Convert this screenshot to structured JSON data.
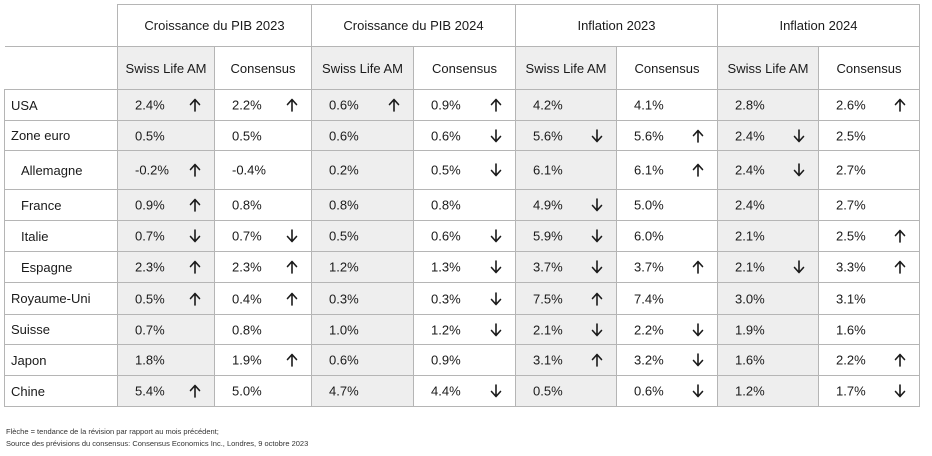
{
  "table": {
    "groups": [
      "Croissance du PIB 2023",
      "Croissance du PIB 2024",
      "Inflation 2023",
      "Inflation 2024"
    ],
    "subheaders": [
      "Swiss Life AM",
      "Consensus"
    ],
    "rows": [
      {
        "label": "USA",
        "sub": false,
        "cells": [
          {
            "v": "2.4%",
            "a": "up"
          },
          {
            "v": "2.2%",
            "a": "up"
          },
          {
            "v": "0.6%",
            "a": "up"
          },
          {
            "v": "0.9%",
            "a": "up"
          },
          {
            "v": "4.2%",
            "a": ""
          },
          {
            "v": "4.1%",
            "a": ""
          },
          {
            "v": "2.8%",
            "a": ""
          },
          {
            "v": "2.6%",
            "a": "up"
          }
        ]
      },
      {
        "label": "Zone euro",
        "sub": false,
        "cells": [
          {
            "v": "0.5%",
            "a": ""
          },
          {
            "v": "0.5%",
            "a": ""
          },
          {
            "v": "0.6%",
            "a": ""
          },
          {
            "v": "0.6%",
            "a": "down"
          },
          {
            "v": "5.6%",
            "a": "down"
          },
          {
            "v": "5.6%",
            "a": "up"
          },
          {
            "v": "2.4%",
            "a": "down"
          },
          {
            "v": "2.5%",
            "a": ""
          }
        ]
      },
      {
        "label": "Allemagne",
        "sub": true,
        "cells": [
          {
            "v": "-0.2%",
            "a": "up"
          },
          {
            "v": "-0.4%",
            "a": ""
          },
          {
            "v": "0.2%",
            "a": ""
          },
          {
            "v": "0.5%",
            "a": "down"
          },
          {
            "v": "6.1%",
            "a": ""
          },
          {
            "v": "6.1%",
            "a": "up"
          },
          {
            "v": "2.4%",
            "a": "down"
          },
          {
            "v": "2.7%",
            "a": ""
          }
        ]
      },
      {
        "label": "France",
        "sub": true,
        "cells": [
          {
            "v": "0.9%",
            "a": "up"
          },
          {
            "v": "0.8%",
            "a": ""
          },
          {
            "v": "0.8%",
            "a": ""
          },
          {
            "v": "0.8%",
            "a": ""
          },
          {
            "v": "4.9%",
            "a": "down"
          },
          {
            "v": "5.0%",
            "a": ""
          },
          {
            "v": "2.4%",
            "a": ""
          },
          {
            "v": "2.7%",
            "a": ""
          }
        ]
      },
      {
        "label": "Italie",
        "sub": true,
        "cells": [
          {
            "v": "0.7%",
            "a": "down"
          },
          {
            "v": "0.7%",
            "a": "down"
          },
          {
            "v": "0.5%",
            "a": ""
          },
          {
            "v": "0.6%",
            "a": "down"
          },
          {
            "v": "5.9%",
            "a": "down"
          },
          {
            "v": "6.0%",
            "a": ""
          },
          {
            "v": "2.1%",
            "a": ""
          },
          {
            "v": "2.5%",
            "a": "up"
          }
        ]
      },
      {
        "label": "Espagne",
        "sub": true,
        "cells": [
          {
            "v": "2.3%",
            "a": "up"
          },
          {
            "v": "2.3%",
            "a": "up"
          },
          {
            "v": "1.2%",
            "a": ""
          },
          {
            "v": "1.3%",
            "a": "down"
          },
          {
            "v": "3.7%",
            "a": "down"
          },
          {
            "v": "3.7%",
            "a": "up"
          },
          {
            "v": "2.1%",
            "a": "down"
          },
          {
            "v": "3.3%",
            "a": "up"
          }
        ]
      },
      {
        "label": "Royaume-Uni",
        "sub": false,
        "cells": [
          {
            "v": "0.5%",
            "a": "up"
          },
          {
            "v": "0.4%",
            "a": "up"
          },
          {
            "v": "0.3%",
            "a": ""
          },
          {
            "v": "0.3%",
            "a": "down"
          },
          {
            "v": "7.5%",
            "a": "up"
          },
          {
            "v": "7.4%",
            "a": ""
          },
          {
            "v": "3.0%",
            "a": ""
          },
          {
            "v": "3.1%",
            "a": ""
          }
        ]
      },
      {
        "label": "Suisse",
        "sub": false,
        "cells": [
          {
            "v": "0.7%",
            "a": ""
          },
          {
            "v": "0.8%",
            "a": ""
          },
          {
            "v": "1.0%",
            "a": ""
          },
          {
            "v": "1.2%",
            "a": "down"
          },
          {
            "v": "2.1%",
            "a": "down"
          },
          {
            "v": "2.2%",
            "a": "down"
          },
          {
            "v": "1.9%",
            "a": ""
          },
          {
            "v": "1.6%",
            "a": ""
          }
        ]
      },
      {
        "label": "Japon",
        "sub": false,
        "cells": [
          {
            "v": "1.8%",
            "a": ""
          },
          {
            "v": "1.9%",
            "a": "up"
          },
          {
            "v": "0.6%",
            "a": ""
          },
          {
            "v": "0.9%",
            "a": ""
          },
          {
            "v": "3.1%",
            "a": "up"
          },
          {
            "v": "3.2%",
            "a": "down"
          },
          {
            "v": "1.6%",
            "a": ""
          },
          {
            "v": "2.2%",
            "a": "up"
          }
        ]
      },
      {
        "label": "Chine",
        "sub": false,
        "cells": [
          {
            "v": "5.4%",
            "a": "up"
          },
          {
            "v": "5.0%",
            "a": ""
          },
          {
            "v": "4.7%",
            "a": ""
          },
          {
            "v": "4.4%",
            "a": "down"
          },
          {
            "v": "0.5%",
            "a": ""
          },
          {
            "v": "0.6%",
            "a": "down"
          },
          {
            "v": "1.2%",
            "a": ""
          },
          {
            "v": "1.7%",
            "a": "down"
          }
        ]
      }
    ]
  },
  "footnotes": [
    "Flèche = tendance de la révision par rapport au mois précédent;",
    "Source des prévisions du consensus: Consensus Economics Inc., Londres, 9 octobre  2023"
  ],
  "colors": {
    "highlight_column": "#eeeeee",
    "grid": "#b5b5b5",
    "text": "#1a1a1a"
  },
  "icons": {
    "up": "arrow-up-icon",
    "down": "arrow-down-icon"
  }
}
